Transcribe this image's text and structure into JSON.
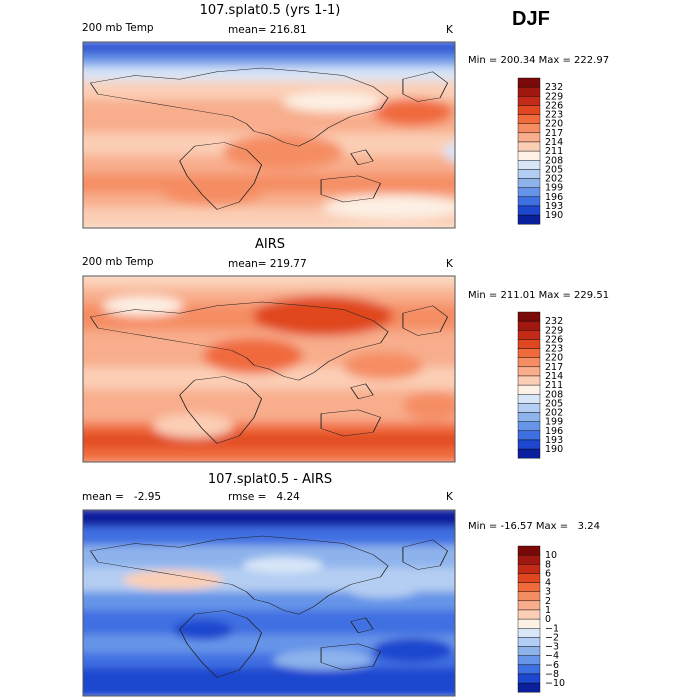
{
  "season": "DJF",
  "chart_data": [
    {
      "type": "heatmap",
      "title": "107.splat0.5 (yrs 1-1)",
      "left_label": "200 mb Temp",
      "center_label": "mean= 216.81",
      "units": "K",
      "min_max": "Min = 200.34 Max = 222.97",
      "min": 200.34,
      "max": 222.97,
      "colorbar_levels": [
        "232",
        "229",
        "226",
        "223",
        "220",
        "217",
        "214",
        "211",
        "208",
        "205",
        "202",
        "199",
        "196",
        "193",
        "190"
      ],
      "color_scale": [
        "#7a0a08",
        "#a01810",
        "#c42a18",
        "#e0461f",
        "#f06b3c",
        "#f58d63",
        "#f8ad8c",
        "#fbcfb6",
        "#fdf0e4",
        "#d8e6f8",
        "#b4cdf2",
        "#8eb3ec",
        "#6694e8",
        "#3f70e2",
        "#1d47cf",
        "#0a1f9c"
      ]
    },
    {
      "type": "heatmap",
      "title": "AIRS",
      "left_label": "200 mb Temp",
      "center_label": "mean= 219.77",
      "units": "K",
      "min_max": "Min = 211.01 Max = 229.51",
      "min": 211.01,
      "max": 229.51,
      "colorbar_levels": [
        "232",
        "229",
        "226",
        "223",
        "220",
        "217",
        "214",
        "211",
        "208",
        "205",
        "202",
        "199",
        "196",
        "193",
        "190"
      ],
      "color_scale": [
        "#7a0a08",
        "#a01810",
        "#c42a18",
        "#e0461f",
        "#f06b3c",
        "#f58d63",
        "#f8ad8c",
        "#fbcfb6",
        "#fdf0e4",
        "#d8e6f8",
        "#b4cdf2",
        "#8eb3ec",
        "#6694e8",
        "#3f70e2",
        "#1d47cf",
        "#0a1f9c"
      ]
    },
    {
      "type": "heatmap",
      "title": "107.splat0.5 - AIRS",
      "left_label": "mean =   -2.95",
      "center_label": "rmse =   4.24",
      "units": "K",
      "min_max": "Min = -16.57 Max =   3.24",
      "min": -16.57,
      "max": 3.24,
      "colorbar_levels": [
        "10",
        "8",
        "6",
        "4",
        "3",
        "2",
        "1",
        "0",
        "−1",
        "−2",
        "−3",
        "−4",
        "−6",
        "−8",
        "−10"
      ],
      "color_scale": [
        "#7a0a08",
        "#a01810",
        "#c42a18",
        "#e0461f",
        "#f06b3c",
        "#f58d63",
        "#f8ad8c",
        "#fbcfb6",
        "#fdf0e4",
        "#d8e6f8",
        "#b4cdf2",
        "#8eb3ec",
        "#6694e8",
        "#3f70e2",
        "#1d47cf",
        "#0a1f9c"
      ]
    }
  ]
}
